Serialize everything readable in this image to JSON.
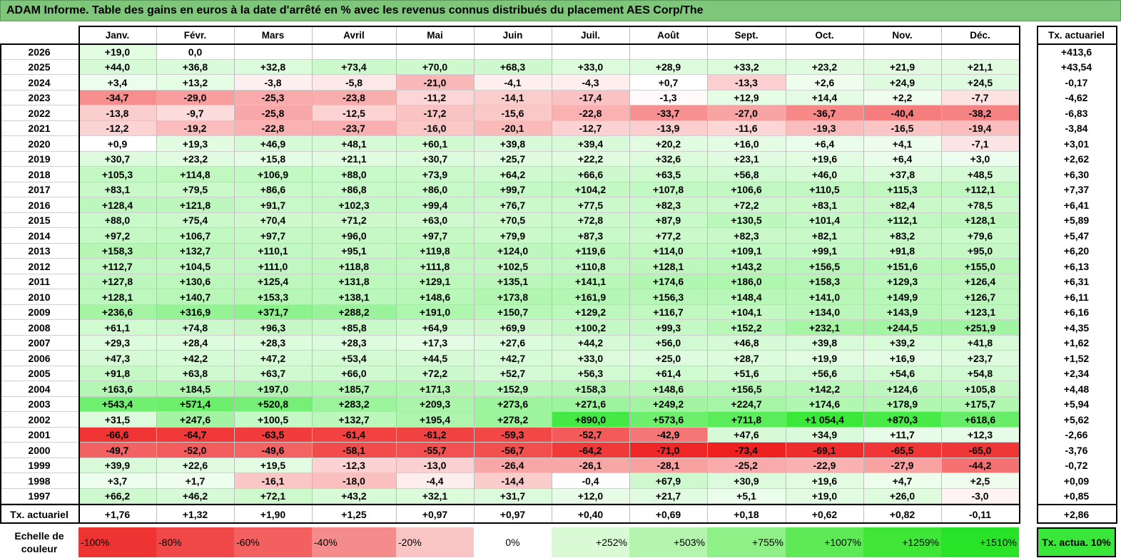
{
  "title": "ADAM Informe. Table des gains en euros à la date d'arrêté en % avec les revenus connus distribués du placement AES Corp/The",
  "colors": {
    "title_bg": "#7dc67a",
    "neg_max": "#ee1c1c",
    "pos_max": "#39e839",
    "neutral": "#ffffff"
  },
  "chart_data": {
    "type": "table",
    "months": [
      "Janv.",
      "Févr.",
      "Mars",
      "Avril",
      "Mai",
      "Juin",
      "Juil.",
      "Août",
      "Sept.",
      "Oct.",
      "Nov.",
      "Déc."
    ],
    "tx_header": "Tx. actuariel",
    "rows": [
      {
        "year": "2026",
        "values": [
          "+19,0",
          "0,0",
          "",
          "",
          "",
          "",
          "",
          "",
          "",
          "",
          "",
          ""
        ],
        "tx": "+413,6"
      },
      {
        "year": "2025",
        "values": [
          "+44,0",
          "+36,8",
          "+32,8",
          "+73,4",
          "+70,0",
          "+68,3",
          "+33,0",
          "+28,9",
          "+33,2",
          "+23,2",
          "+21,9",
          "+21,1"
        ],
        "tx": "+43,54"
      },
      {
        "year": "2024",
        "values": [
          "+3,4",
          "+13,2",
          "-3,8",
          "-5,8",
          "-21,0",
          "-4,1",
          "-4,3",
          "+0,7",
          "-13,3",
          "+2,6",
          "+24,9",
          "+24,5"
        ],
        "tx": "-0,17"
      },
      {
        "year": "2023",
        "values": [
          "-34,7",
          "-29,0",
          "-25,3",
          "-23,8",
          "-11,2",
          "-14,1",
          "-17,4",
          "-1,3",
          "+12,9",
          "+14,4",
          "+2,2",
          "-7,7"
        ],
        "tx": "-4,62"
      },
      {
        "year": "2022",
        "values": [
          "-13,8",
          "-9,7",
          "-25,8",
          "-12,5",
          "-17,2",
          "-15,6",
          "-22,8",
          "-33,7",
          "-27,0",
          "-36,7",
          "-40,4",
          "-38,2"
        ],
        "tx": "-6,83"
      },
      {
        "year": "2021",
        "values": [
          "-12,2",
          "-19,2",
          "-22,8",
          "-23,7",
          "-16,0",
          "-20,1",
          "-12,7",
          "-13,9",
          "-11,6",
          "-19,3",
          "-16,5",
          "-19,4"
        ],
        "tx": "-3,84"
      },
      {
        "year": "2020",
        "values": [
          "+0,9",
          "+19,3",
          "+46,9",
          "+48,1",
          "+60,1",
          "+39,8",
          "+39,4",
          "+20,2",
          "+16,0",
          "+6,4",
          "+4,1",
          "-7,1"
        ],
        "tx": "+3,01"
      },
      {
        "year": "2019",
        "values": [
          "+30,7",
          "+23,2",
          "+15,8",
          "+21,1",
          "+30,7",
          "+25,7",
          "+22,2",
          "+32,6",
          "+23,1",
          "+19,6",
          "+6,4",
          "+3,0"
        ],
        "tx": "+2,62"
      },
      {
        "year": "2018",
        "values": [
          "+105,3",
          "+114,8",
          "+106,9",
          "+88,0",
          "+73,9",
          "+64,2",
          "+66,6",
          "+63,5",
          "+56,8",
          "+46,0",
          "+37,8",
          "+48,5"
        ],
        "tx": "+6,30"
      },
      {
        "year": "2017",
        "values": [
          "+83,1",
          "+79,5",
          "+86,6",
          "+86,8",
          "+86,0",
          "+99,7",
          "+104,2",
          "+107,8",
          "+106,6",
          "+110,5",
          "+115,3",
          "+112,1"
        ],
        "tx": "+7,37"
      },
      {
        "year": "2016",
        "values": [
          "+128,4",
          "+121,8",
          "+91,7",
          "+102,3",
          "+99,4",
          "+76,7",
          "+77,5",
          "+82,3",
          "+72,2",
          "+83,1",
          "+82,4",
          "+78,5"
        ],
        "tx": "+6,41"
      },
      {
        "year": "2015",
        "values": [
          "+88,0",
          "+75,4",
          "+70,4",
          "+71,2",
          "+63,0",
          "+70,5",
          "+72,8",
          "+87,9",
          "+130,5",
          "+101,4",
          "+112,1",
          "+128,1"
        ],
        "tx": "+5,89"
      },
      {
        "year": "2014",
        "values": [
          "+97,2",
          "+106,7",
          "+97,7",
          "+96,0",
          "+97,7",
          "+79,9",
          "+87,3",
          "+77,2",
          "+82,3",
          "+82,1",
          "+83,2",
          "+79,6"
        ],
        "tx": "+5,47"
      },
      {
        "year": "2013",
        "values": [
          "+158,3",
          "+132,7",
          "+110,1",
          "+95,1",
          "+119,8",
          "+124,0",
          "+119,6",
          "+114,0",
          "+109,1",
          "+99,1",
          "+91,8",
          "+95,0"
        ],
        "tx": "+6,20"
      },
      {
        "year": "2012",
        "values": [
          "+112,7",
          "+104,5",
          "+111,0",
          "+118,8",
          "+111,8",
          "+102,5",
          "+110,8",
          "+128,1",
          "+143,2",
          "+156,5",
          "+151,6",
          "+155,0"
        ],
        "tx": "+6,13"
      },
      {
        "year": "2011",
        "values": [
          "+127,8",
          "+130,6",
          "+125,4",
          "+131,8",
          "+129,1",
          "+135,1",
          "+141,1",
          "+174,6",
          "+186,0",
          "+158,3",
          "+129,3",
          "+126,4"
        ],
        "tx": "+6,31"
      },
      {
        "year": "2010",
        "values": [
          "+128,1",
          "+140,7",
          "+153,3",
          "+138,1",
          "+148,6",
          "+173,8",
          "+161,9",
          "+156,3",
          "+148,4",
          "+141,0",
          "+149,9",
          "+126,7"
        ],
        "tx": "+6,11"
      },
      {
        "year": "2009",
        "values": [
          "+236,6",
          "+316,9",
          "+371,7",
          "+288,2",
          "+191,0",
          "+150,7",
          "+129,2",
          "+116,7",
          "+104,1",
          "+134,0",
          "+143,9",
          "+123,1"
        ],
        "tx": "+6,16"
      },
      {
        "year": "2008",
        "values": [
          "+61,1",
          "+74,8",
          "+96,3",
          "+85,8",
          "+64,9",
          "+69,9",
          "+100,2",
          "+99,3",
          "+152,2",
          "+232,1",
          "+244,5",
          "+251,9"
        ],
        "tx": "+4,35"
      },
      {
        "year": "2007",
        "values": [
          "+29,3",
          "+28,4",
          "+28,3",
          "+28,3",
          "+17,3",
          "+27,6",
          "+44,2",
          "+56,0",
          "+46,8",
          "+39,8",
          "+39,2",
          "+41,8"
        ],
        "tx": "+1,62"
      },
      {
        "year": "2006",
        "values": [
          "+47,3",
          "+42,2",
          "+47,2",
          "+53,4",
          "+44,5",
          "+42,7",
          "+33,0",
          "+25,0",
          "+28,7",
          "+19,9",
          "+16,9",
          "+23,7"
        ],
        "tx": "+1,52"
      },
      {
        "year": "2005",
        "values": [
          "+91,8",
          "+63,8",
          "+63,7",
          "+66,0",
          "+72,2",
          "+52,7",
          "+56,3",
          "+61,4",
          "+51,6",
          "+56,6",
          "+54,6",
          "+54,8"
        ],
        "tx": "+2,34"
      },
      {
        "year": "2004",
        "values": [
          "+163,6",
          "+184,5",
          "+197,0",
          "+185,7",
          "+171,3",
          "+152,9",
          "+158,3",
          "+148,6",
          "+156,5",
          "+142,2",
          "+124,6",
          "+105,8"
        ],
        "tx": "+4,48"
      },
      {
        "year": "2003",
        "values": [
          "+543,4",
          "+571,4",
          "+520,8",
          "+283,2",
          "+209,3",
          "+273,6",
          "+271,6",
          "+249,2",
          "+224,7",
          "+174,6",
          "+178,9",
          "+175,7"
        ],
        "tx": "+5,94"
      },
      {
        "year": "2002",
        "values": [
          "+31,5",
          "+247,6",
          "+100,5",
          "+132,7",
          "+195,4",
          "+278,2",
          "+890,0",
          "+573,6",
          "+711,8",
          "+1 054,4",
          "+870,3",
          "+618,6"
        ],
        "tx": "+5,62"
      },
      {
        "year": "2001",
        "values": [
          "-66,6",
          "-64,7",
          "-63,5",
          "-61,4",
          "-61,2",
          "-59,3",
          "-52,7",
          "-42,9",
          "+47,6",
          "+34,9",
          "+11,7",
          "+12,3"
        ],
        "tx": "-2,66"
      },
      {
        "year": "2000",
        "values": [
          "-49,7",
          "-52,0",
          "-49,6",
          "-58,1",
          "-55,7",
          "-56,7",
          "-64,2",
          "-71,0",
          "-73,4",
          "-69,1",
          "-65,5",
          "-65,0"
        ],
        "tx": "-3,76"
      },
      {
        "year": "1999",
        "values": [
          "+39,9",
          "+22,6",
          "+19,5",
          "-12,3",
          "-13,0",
          "-26,4",
          "-26,1",
          "-28,1",
          "-25,2",
          "-22,9",
          "-27,9",
          "-44,2"
        ],
        "tx": "-0,72"
      },
      {
        "year": "1998",
        "values": [
          "+3,7",
          "+1,7",
          "-16,1",
          "-18,0",
          "-4,4",
          "-14,4",
          "-0,4",
          "+67,9",
          "+30,9",
          "+19,6",
          "+4,7",
          "+2,5"
        ],
        "tx": "+0,09"
      },
      {
        "year": "1997",
        "values": [
          "+66,2",
          "+46,2",
          "+72,1",
          "+43,2",
          "+32,1",
          "+31,7",
          "+12,0",
          "+21,7",
          "+5,1",
          "+19,0",
          "+26,0",
          "-3,0"
        ],
        "tx": "+0,85"
      }
    ],
    "footer": {
      "label": "Tx. actuariel",
      "values": [
        "+1,76",
        "+1,32",
        "+1,90",
        "+1,25",
        "+0,97",
        "+0,97",
        "+0,40",
        "+0,69",
        "+0,18",
        "+0,62",
        "+0,82",
        "-0,11"
      ],
      "tx": "+2,86"
    },
    "scale": {
      "label": "Echelle de couleur",
      "items": [
        {
          "text": "-100%",
          "align": "left",
          "color": "#ee3333"
        },
        {
          "text": "-80%",
          "align": "left",
          "color": "#f04848"
        },
        {
          "text": "-60%",
          "align": "left",
          "color": "#f26060"
        },
        {
          "text": "-40%",
          "align": "left",
          "color": "#f48c8c"
        },
        {
          "text": "-20%",
          "align": "left",
          "color": "#f9c4c4"
        },
        {
          "text": "0%",
          "align": "center",
          "color": "#ffffff"
        },
        {
          "text": "+252%",
          "align": "right",
          "color": "#d9fad5"
        },
        {
          "text": "+503%",
          "align": "right",
          "color": "#b4f4ae"
        },
        {
          "text": "+755%",
          "align": "right",
          "color": "#8ef086"
        },
        {
          "text": "+1007%",
          "align": "right",
          "color": "#5ee956"
        },
        {
          "text": "+1259%",
          "align": "right",
          "color": "#3fe638"
        },
        {
          "text": "+1510%",
          "align": "right",
          "color": "#29e329"
        }
      ],
      "tx_box": "Tx. actua. 10%",
      "tx_box_color": "#39e639"
    }
  }
}
